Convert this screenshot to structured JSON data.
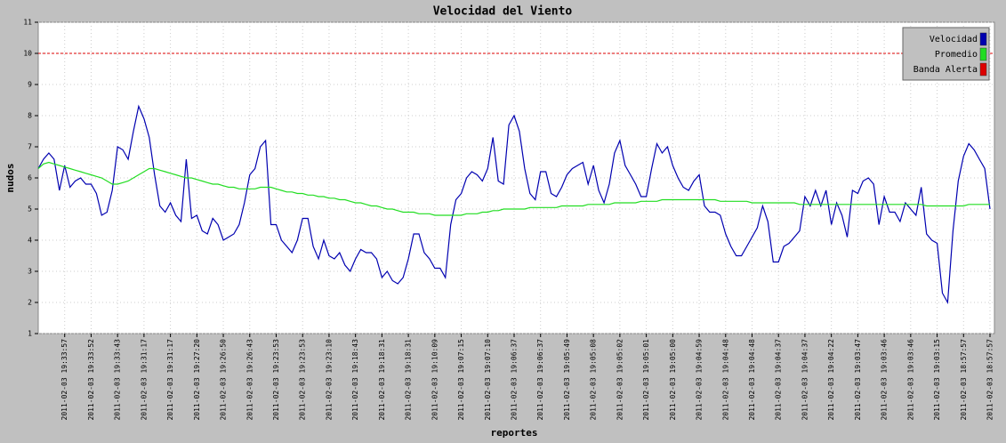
{
  "chart_data": {
    "type": "line",
    "title": "Velocidad del Viento",
    "x_label": "reportes",
    "y_label": "nudos",
    "ylim": [
      1,
      11
    ],
    "yticks": [
      1,
      2,
      3,
      4,
      5,
      6,
      7,
      8,
      9,
      10,
      11
    ],
    "grid": true,
    "legend": "top-right",
    "categories": [
      null,
      null,
      null,
      null,
      null,
      "2011-02-03 19:33:57",
      null,
      null,
      null,
      null,
      "2011-02-03 19:33:52",
      null,
      null,
      null,
      null,
      "2011-02-03 19:33:43",
      null,
      null,
      null,
      null,
      "2011-02-03 19:31:17",
      null,
      null,
      null,
      null,
      "2011-02-03 19:31:17",
      null,
      null,
      null,
      null,
      "2011-02-03 19:27:20",
      null,
      null,
      null,
      null,
      "2011-02-03 19:26:50",
      null,
      null,
      null,
      null,
      "2011-02-03 19:26:43",
      null,
      null,
      null,
      null,
      "2011-02-03 19:23:53",
      null,
      null,
      null,
      null,
      "2011-02-03 19:23:53",
      null,
      null,
      null,
      null,
      "2011-02-03 19:23:10",
      null,
      null,
      null,
      null,
      "2011-02-03 19:18:43",
      null,
      null,
      null,
      null,
      "2011-02-03 19:18:31",
      null,
      null,
      null,
      null,
      "2011-02-03 19:18:31",
      null,
      null,
      null,
      null,
      "2011-02-03 19:10:09",
      null,
      null,
      null,
      null,
      "2011-02-03 19:07:15",
      null,
      null,
      null,
      null,
      "2011-02-03 19:07:10",
      null,
      null,
      null,
      null,
      "2011-02-03 19:06:37",
      null,
      null,
      null,
      null,
      "2011-02-03 19:06:37",
      null,
      null,
      null,
      null,
      "2011-02-03 19:05:49",
      null,
      null,
      null,
      null,
      "2011-02-03 19:05:08",
      null,
      null,
      null,
      null,
      "2011-02-03 19:05:02",
      null,
      null,
      null,
      null,
      "2011-02-03 19:05:01",
      null,
      null,
      null,
      null,
      "2011-02-03 19:05:00",
      null,
      null,
      null,
      null,
      "2011-02-03 19:04:59",
      null,
      null,
      null,
      null,
      "2011-02-03 19:04:48",
      null,
      null,
      null,
      null,
      "2011-02-03 19:04:48",
      null,
      null,
      null,
      null,
      "2011-02-03 19:04:37",
      null,
      null,
      null,
      null,
      "2011-02-03 19:04:37",
      null,
      null,
      null,
      null,
      "2011-02-03 19:04:22",
      null,
      null,
      null,
      null,
      "2011-02-03 19:03:47",
      null,
      null,
      null,
      null,
      "2011-02-03 19:03:46",
      null,
      null,
      null,
      null,
      "2011-02-03 19:03:46",
      null,
      null,
      null,
      null,
      "2011-02-03 19:03:15",
      null,
      null,
      null,
      null,
      "2011-02-03 18:57:57",
      null,
      null,
      null,
      null,
      "2011-02-03 18:57:57"
    ],
    "series": [
      {
        "name": "Velocidad",
        "color": "#0000b0",
        "values": [
          6.3,
          6.6,
          6.8,
          6.6,
          5.6,
          6.4,
          5.7,
          5.9,
          6.0,
          5.8,
          5.8,
          5.5,
          4.8,
          4.9,
          5.6,
          7.0,
          6.9,
          6.6,
          7.5,
          8.3,
          7.9,
          7.3,
          6.1,
          5.1,
          4.9,
          5.2,
          4.8,
          4.6,
          6.6,
          4.7,
          4.8,
          4.3,
          4.2,
          4.7,
          4.5,
          4.0,
          4.1,
          4.2,
          4.5,
          5.2,
          6.1,
          6.3,
          7.0,
          7.2,
          4.5,
          4.5,
          4.0,
          3.8,
          3.6,
          4.0,
          4.7,
          4.7,
          3.8,
          3.4,
          4.0,
          3.5,
          3.4,
          3.6,
          3.2,
          3.0,
          3.4,
          3.7,
          3.6,
          3.6,
          3.4,
          2.8,
          3.0,
          2.7,
          2.6,
          2.8,
          3.4,
          4.2,
          4.2,
          3.6,
          3.4,
          3.1,
          3.1,
          2.8,
          4.5,
          5.3,
          5.5,
          6.0,
          6.2,
          6.1,
          5.9,
          6.3,
          7.3,
          5.9,
          5.8,
          7.7,
          8.0,
          7.5,
          6.3,
          5.5,
          5.3,
          6.2,
          6.2,
          5.5,
          5.4,
          5.7,
          6.1,
          6.3,
          6.4,
          6.5,
          5.8,
          6.4,
          5.6,
          5.2,
          5.8,
          6.8,
          7.2,
          6.4,
          6.1,
          5.8,
          5.4,
          5.4,
          6.3,
          7.1,
          6.8,
          7.0,
          6.4,
          6.0,
          5.7,
          5.6,
          5.9,
          6.1,
          5.1,
          4.9,
          4.9,
          4.8,
          4.2,
          3.8,
          3.5,
          3.5,
          3.8,
          4.1,
          4.4,
          5.1,
          4.6,
          3.3,
          3.3,
          3.8,
          3.9,
          4.1,
          4.3,
          5.4,
          5.1,
          5.6,
          5.1,
          5.6,
          4.5,
          5.2,
          4.8,
          4.1,
          5.6,
          5.5,
          5.9,
          6.0,
          5.8,
          4.5,
          5.4,
          4.9,
          4.9,
          4.6,
          5.2,
          5.0,
          4.8,
          5.7,
          4.2,
          4.0,
          3.9,
          2.3,
          2.0,
          4.3,
          5.9,
          6.7,
          7.1,
          6.9,
          6.6,
          6.3,
          5.0
        ]
      },
      {
        "name": "Promedio",
        "color": "#22dd22",
        "values": [
          6.3,
          6.45,
          6.5,
          6.45,
          6.4,
          6.35,
          6.3,
          6.25,
          6.2,
          6.15,
          6.1,
          6.05,
          6.0,
          5.9,
          5.8,
          5.8,
          5.85,
          5.9,
          6.0,
          6.1,
          6.2,
          6.3,
          6.3,
          6.25,
          6.2,
          6.15,
          6.1,
          6.05,
          6.0,
          6.0,
          5.95,
          5.9,
          5.85,
          5.8,
          5.8,
          5.75,
          5.7,
          5.7,
          5.65,
          5.65,
          5.65,
          5.65,
          5.7,
          5.7,
          5.7,
          5.65,
          5.6,
          5.55,
          5.55,
          5.5,
          5.5,
          5.45,
          5.45,
          5.4,
          5.4,
          5.35,
          5.35,
          5.3,
          5.3,
          5.25,
          5.2,
          5.2,
          5.15,
          5.1,
          5.1,
          5.05,
          5.0,
          5.0,
          4.95,
          4.9,
          4.9,
          4.9,
          4.85,
          4.85,
          4.85,
          4.8,
          4.8,
          4.8,
          4.8,
          4.8,
          4.8,
          4.85,
          4.85,
          4.85,
          4.9,
          4.9,
          4.95,
          4.95,
          5.0,
          5.0,
          5.0,
          5.0,
          5.0,
          5.05,
          5.05,
          5.05,
          5.05,
          5.05,
          5.05,
          5.1,
          5.1,
          5.1,
          5.1,
          5.1,
          5.15,
          5.15,
          5.15,
          5.15,
          5.15,
          5.2,
          5.2,
          5.2,
          5.2,
          5.2,
          5.25,
          5.25,
          5.25,
          5.25,
          5.3,
          5.3,
          5.3,
          5.3,
          5.3,
          5.3,
          5.3,
          5.3,
          5.3,
          5.3,
          5.3,
          5.25,
          5.25,
          5.25,
          5.25,
          5.25,
          5.25,
          5.2,
          5.2,
          5.2,
          5.2,
          5.2,
          5.2,
          5.2,
          5.2,
          5.2,
          5.15,
          5.15,
          5.15,
          5.15,
          5.15,
          5.15,
          5.15,
          5.15,
          5.15,
          5.15,
          5.15,
          5.15,
          5.15,
          5.15,
          5.15,
          5.15,
          5.15,
          5.15,
          5.15,
          5.15,
          5.15,
          5.15,
          5.15,
          5.15,
          5.1,
          5.1,
          5.1,
          5.1,
          5.1,
          5.1,
          5.1,
          5.1,
          5.15,
          5.15,
          5.15,
          5.15,
          5.15
        ]
      }
    ],
    "thresholds": [
      {
        "name": "Banda Alerta",
        "color": "#dd0000",
        "value": 10
      }
    ]
  }
}
